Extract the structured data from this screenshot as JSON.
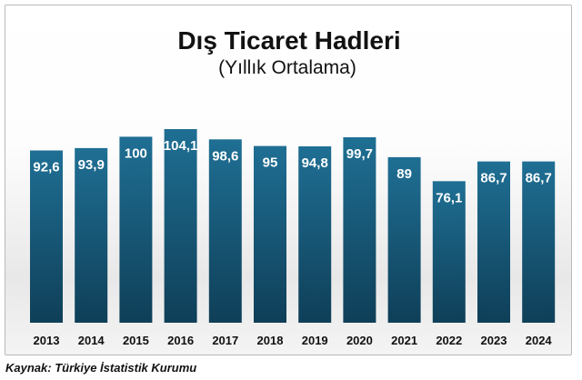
{
  "chart_data": {
    "type": "bar",
    "title": "Dış Ticaret Hadleri",
    "subtitle": "(Yıllık Ortalama)",
    "categories": [
      "2013",
      "2014",
      "2015",
      "2016",
      "2017",
      "2018",
      "2019",
      "2020",
      "2021",
      "2022",
      "2023",
      "2024"
    ],
    "values": [
      92.6,
      93.9,
      100,
      104.1,
      98.6,
      95,
      94.8,
      99.7,
      89,
      76.1,
      86.7,
      86.7
    ],
    "value_labels": [
      "92,6",
      "93,9",
      "100",
      "104,1",
      "98,6",
      "95",
      "94,8",
      "99,7",
      "89",
      "76,1",
      "86,7",
      "86,7"
    ],
    "xlabel": "",
    "ylabel": "",
    "ylim": [
      0,
      104.1
    ],
    "grid": false,
    "legend": "none",
    "bar_color_top": "#1f6f94",
    "bar_color_bottom": "#0f3f58"
  },
  "source": "Kaynak: Türkiye İstatistik Kurumu"
}
